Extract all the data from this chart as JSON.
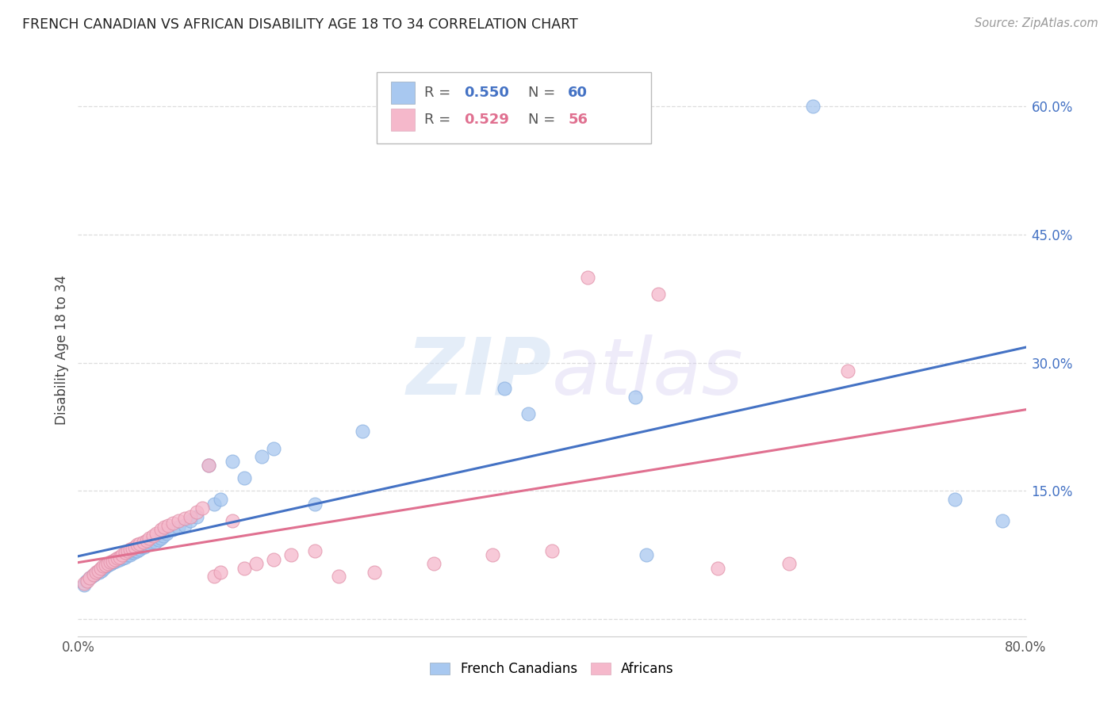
{
  "title": "FRENCH CANADIAN VS AFRICAN DISABILITY AGE 18 TO 34 CORRELATION CHART",
  "source": "Source: ZipAtlas.com",
  "ylabel": "Disability Age 18 to 34",
  "xlim": [
    0.0,
    0.8
  ],
  "ylim": [
    -0.02,
    0.65
  ],
  "y_ticks_right": [
    0.0,
    0.15,
    0.3,
    0.45,
    0.6
  ],
  "y_tick_labels_right": [
    "",
    "15.0%",
    "30.0%",
    "45.0%",
    "60.0%"
  ],
  "legend_fc_label": "French Canadians",
  "legend_af_label": "Africans",
  "fc_color": "#A8C8F0",
  "af_color": "#F5B8CB",
  "fc_line_color": "#4472C4",
  "af_line_color": "#E07090",
  "R_fc": 0.55,
  "N_fc": 60,
  "R_af": 0.529,
  "N_af": 56,
  "watermark_zip": "ZIP",
  "watermark_atlas": "atlas",
  "background_color": "#FFFFFF",
  "grid_color": "#DDDDDD",
  "fc_x": [
    0.005,
    0.007,
    0.01,
    0.012,
    0.014,
    0.016,
    0.018,
    0.02,
    0.02,
    0.022,
    0.024,
    0.025,
    0.027,
    0.028,
    0.03,
    0.03,
    0.032,
    0.034,
    0.035,
    0.037,
    0.038,
    0.04,
    0.042,
    0.044,
    0.045,
    0.047,
    0.048,
    0.05,
    0.052,
    0.054,
    0.056,
    0.058,
    0.06,
    0.062,
    0.065,
    0.068,
    0.07,
    0.072,
    0.075,
    0.08,
    0.085,
    0.09,
    0.095,
    0.1,
    0.11,
    0.115,
    0.12,
    0.13,
    0.14,
    0.155,
    0.165,
    0.2,
    0.24,
    0.36,
    0.38,
    0.47,
    0.48,
    0.62,
    0.74,
    0.78
  ],
  "fc_y": [
    0.04,
    0.045,
    0.048,
    0.05,
    0.052,
    0.055,
    0.055,
    0.057,
    0.06,
    0.06,
    0.062,
    0.063,
    0.065,
    0.065,
    0.067,
    0.068,
    0.068,
    0.07,
    0.07,
    0.072,
    0.072,
    0.073,
    0.075,
    0.075,
    0.078,
    0.078,
    0.08,
    0.08,
    0.082,
    0.085,
    0.085,
    0.087,
    0.088,
    0.09,
    0.09,
    0.093,
    0.095,
    0.098,
    0.1,
    0.105,
    0.108,
    0.11,
    0.115,
    0.12,
    0.18,
    0.135,
    0.14,
    0.185,
    0.165,
    0.19,
    0.2,
    0.135,
    0.22,
    0.27,
    0.24,
    0.26,
    0.075,
    0.6,
    0.14,
    0.115
  ],
  "af_x": [
    0.005,
    0.008,
    0.01,
    0.013,
    0.015,
    0.017,
    0.019,
    0.021,
    0.023,
    0.025,
    0.027,
    0.029,
    0.031,
    0.033,
    0.035,
    0.037,
    0.04,
    0.042,
    0.044,
    0.046,
    0.048,
    0.05,
    0.052,
    0.055,
    0.058,
    0.06,
    0.063,
    0.066,
    0.07,
    0.073,
    0.076,
    0.08,
    0.085,
    0.09,
    0.095,
    0.1,
    0.105,
    0.11,
    0.115,
    0.12,
    0.13,
    0.14,
    0.15,
    0.165,
    0.18,
    0.2,
    0.22,
    0.25,
    0.3,
    0.35,
    0.4,
    0.43,
    0.49,
    0.54,
    0.6,
    0.65
  ],
  "af_y": [
    0.042,
    0.045,
    0.048,
    0.052,
    0.055,
    0.057,
    0.06,
    0.062,
    0.063,
    0.065,
    0.067,
    0.068,
    0.07,
    0.072,
    0.073,
    0.075,
    0.078,
    0.08,
    0.082,
    0.083,
    0.085,
    0.087,
    0.088,
    0.09,
    0.092,
    0.095,
    0.098,
    0.1,
    0.105,
    0.108,
    0.11,
    0.112,
    0.115,
    0.118,
    0.12,
    0.125,
    0.13,
    0.18,
    0.05,
    0.055,
    0.115,
    0.06,
    0.065,
    0.07,
    0.075,
    0.08,
    0.05,
    0.055,
    0.065,
    0.075,
    0.08,
    0.4,
    0.38,
    0.06,
    0.065,
    0.29
  ]
}
